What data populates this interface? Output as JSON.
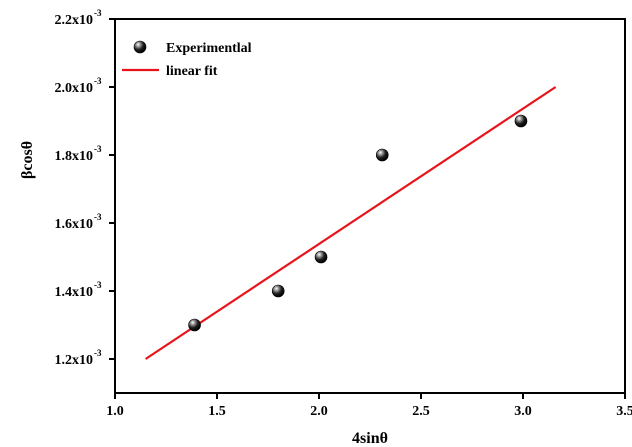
{
  "chart_data": {
    "type": "scatter",
    "xlabel": "4sinθ",
    "ylabel": "βcosθ",
    "xlim": [
      1.0,
      3.5
    ],
    "ylim": [
      0.0011,
      0.0022
    ],
    "x_ticks": [
      {
        "value": 1.0,
        "label": "1.0"
      },
      {
        "value": 1.5,
        "label": "1.5"
      },
      {
        "value": 2.0,
        "label": "2.0"
      },
      {
        "value": 2.5,
        "label": "2.5"
      },
      {
        "value": 3.0,
        "label": "3.0"
      },
      {
        "value": 3.5,
        "label": "3.5"
      }
    ],
    "y_ticks": [
      {
        "value": 0.0012,
        "mantissa": "1.2x10",
        "exponent": "-3"
      },
      {
        "value": 0.0014,
        "mantissa": "1.4x10",
        "exponent": "-3"
      },
      {
        "value": 0.0016,
        "mantissa": "1.6x10",
        "exponent": "-3"
      },
      {
        "value": 0.0018,
        "mantissa": "1.8x10",
        "exponent": "-3"
      },
      {
        "value": 0.002,
        "mantissa": "2.0x10",
        "exponent": "-3"
      },
      {
        "value": 0.0022,
        "mantissa": "2.2x10",
        "exponent": "-3"
      }
    ],
    "series": [
      {
        "name": "Experimentlal",
        "kind": "scatter",
        "color": "#000000",
        "x": [
          1.39,
          1.8,
          2.01,
          2.31,
          2.99
        ],
        "y": [
          0.0013,
          0.0014,
          0.0015,
          0.0018,
          0.0019
        ]
      },
      {
        "name": "linear fit",
        "kind": "line",
        "color": "#e8141b",
        "x": [
          1.15,
          3.16
        ],
        "y": [
          0.0012,
          0.002
        ]
      }
    ],
    "legend_position": "top-left",
    "grid": false
  }
}
